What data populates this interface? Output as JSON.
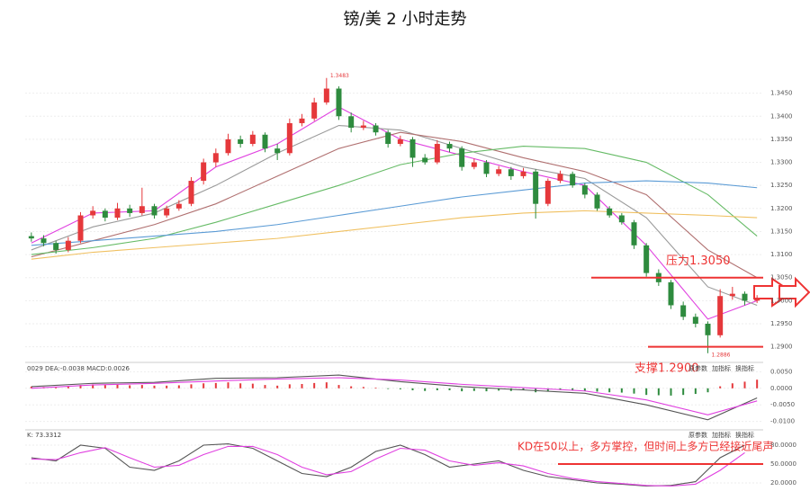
{
  "chart_data": [
    {
      "type": "candlestick",
      "title": "镑/美 2 小时走势",
      "candles": [
        [
          1.314,
          1.3148,
          1.3128,
          1.3135
        ],
        [
          1.3135,
          1.3142,
          1.3118,
          1.3125
        ],
        [
          1.3125,
          1.313,
          1.3102,
          1.311
        ],
        [
          1.311,
          1.3138,
          1.3105,
          1.313
        ],
        [
          1.313,
          1.3192,
          1.3125,
          1.3185
        ],
        [
          1.3185,
          1.3205,
          1.3178,
          1.3195
        ],
        [
          1.3195,
          1.32,
          1.3172,
          1.318
        ],
        [
          1.318,
          1.3212,
          1.3175,
          1.32
        ],
        [
          1.32,
          1.3208,
          1.3182,
          1.319
        ],
        [
          1.319,
          1.3245,
          1.3185,
          1.3205
        ],
        [
          1.3205,
          1.321,
          1.3178,
          1.3185
        ],
        [
          1.3185,
          1.3206,
          1.318,
          1.32
        ],
        [
          1.32,
          1.3218,
          1.3195,
          1.321
        ],
        [
          1.321,
          1.3268,
          1.3205,
          1.326
        ],
        [
          1.326,
          1.3308,
          1.3252,
          1.33
        ],
        [
          1.33,
          1.333,
          1.329,
          1.332
        ],
        [
          1.332,
          1.3362,
          1.3315,
          1.335
        ],
        [
          1.335,
          1.3358,
          1.3332,
          1.334
        ],
        [
          1.334,
          1.3368,
          1.3335,
          1.336
        ],
        [
          1.336,
          1.3365,
          1.3322,
          1.333
        ],
        [
          1.333,
          1.334,
          1.3305,
          1.332
        ],
        [
          1.332,
          1.3395,
          1.3315,
          1.3385
        ],
        [
          1.3385,
          1.3405,
          1.3378,
          1.3395
        ],
        [
          1.3395,
          1.344,
          1.339,
          1.343
        ],
        [
          1.343,
          1.3483,
          1.3425,
          1.346
        ],
        [
          1.346,
          1.3465,
          1.3392,
          1.34
        ],
        [
          1.34,
          1.3408,
          1.3365,
          1.3375
        ],
        [
          1.3375,
          1.339,
          1.337,
          1.338
        ],
        [
          1.338,
          1.3385,
          1.3358,
          1.3365
        ],
        [
          1.3365,
          1.337,
          1.3332,
          1.334
        ],
        [
          1.334,
          1.3358,
          1.3335,
          1.335
        ],
        [
          1.335,
          1.3355,
          1.329,
          1.331
        ],
        [
          1.331,
          1.3318,
          1.3295,
          1.33
        ],
        [
          1.33,
          1.3348,
          1.3296,
          1.334
        ],
        [
          1.334,
          1.3345,
          1.3322,
          1.333
        ],
        [
          1.333,
          1.3335,
          1.3282,
          1.329
        ],
        [
          1.329,
          1.3308,
          1.3285,
          1.33
        ],
        [
          1.33,
          1.3305,
          1.3268,
          1.3275
        ],
        [
          1.3275,
          1.3292,
          1.327,
          1.3285
        ],
        [
          1.3285,
          1.329,
          1.3262,
          1.327
        ],
        [
          1.327,
          1.3288,
          1.3265,
          1.328
        ],
        [
          1.328,
          1.3285,
          1.3178,
          1.321
        ],
        [
          1.321,
          1.3265,
          1.3205,
          1.326
        ],
        [
          1.326,
          1.3282,
          1.3255,
          1.3275
        ],
        [
          1.3275,
          1.328,
          1.3245,
          1.325
        ],
        [
          1.325,
          1.3255,
          1.3222,
          1.323
        ],
        [
          1.323,
          1.3235,
          1.3195,
          1.32
        ],
        [
          1.32,
          1.3205,
          1.318,
          1.3185
        ],
        [
          1.3185,
          1.319,
          1.3165,
          1.317
        ],
        [
          1.317,
          1.3175,
          1.3112,
          1.312
        ],
        [
          1.312,
          1.3125,
          1.3052,
          1.306
        ],
        [
          1.306,
          1.3068,
          1.3032,
          1.304
        ],
        [
          1.304,
          1.3045,
          1.2982,
          1.299
        ],
        [
          1.299,
          1.2998,
          1.2958,
          1.2965
        ],
        [
          1.2965,
          1.2972,
          1.2942,
          1.295
        ],
        [
          1.295,
          1.2955,
          1.2886,
          1.2925
        ],
        [
          1.2925,
          1.3025,
          1.292,
          1.301
        ],
        [
          1.301,
          1.303,
          1.3002,
          1.3015
        ],
        [
          1.3015,
          1.302,
          1.299,
          1.3
        ],
        [
          1.3,
          1.3012,
          1.2995,
          1.3005
        ]
      ],
      "color_up": "#e5383b",
      "color_down": "#2e8b3e",
      "ma_x": [
        0,
        5,
        10,
        15,
        20,
        25,
        30,
        35,
        40,
        45,
        50,
        55,
        59
      ],
      "ma": [
        {
          "color": "#e040e0",
          "values": [
            1.3125,
            1.319,
            1.3195,
            1.329,
            1.334,
            1.342,
            1.335,
            1.3315,
            1.328,
            1.325,
            1.312,
            1.296,
            1.3
          ]
        },
        {
          "color": "#9a9a9a",
          "values": [
            1.311,
            1.316,
            1.319,
            1.325,
            1.332,
            1.338,
            1.337,
            1.333,
            1.329,
            1.3265,
            1.318,
            1.303,
            1.299
          ]
        },
        {
          "color": "#b07070",
          "values": [
            1.3095,
            1.313,
            1.3165,
            1.321,
            1.327,
            1.333,
            1.3365,
            1.3345,
            1.331,
            1.328,
            1.323,
            1.311,
            1.305
          ]
        },
        {
          "color": "#66bb66",
          "values": [
            1.31,
            1.3115,
            1.3135,
            1.317,
            1.321,
            1.325,
            1.3295,
            1.332,
            1.3335,
            1.333,
            1.33,
            1.323,
            1.314
          ]
        },
        {
          "color": "#5b9bd5",
          "values": [
            1.312,
            1.313,
            1.314,
            1.315,
            1.3165,
            1.3185,
            1.3205,
            1.3225,
            1.324,
            1.3255,
            1.326,
            1.3255,
            1.3245
          ]
        },
        {
          "color": "#f0c060",
          "values": [
            1.309,
            1.3105,
            1.3115,
            1.3125,
            1.3135,
            1.315,
            1.3165,
            1.318,
            1.319,
            1.3195,
            1.319,
            1.3185,
            1.318
          ]
        }
      ],
      "ylim": [
        1.287,
        1.35
      ],
      "yticks": [
        {
          "value": 1.29,
          "label": "1.2900"
        },
        {
          "value": 1.295,
          "label": "1.2950"
        },
        {
          "value": 1.3,
          "label": "1.3000"
        },
        {
          "value": 1.305,
          "label": "1.3050"
        },
        {
          "value": 1.31,
          "label": "1.3100"
        },
        {
          "value": 1.315,
          "label": "1.3150"
        },
        {
          "value": 1.32,
          "label": "1.3200"
        },
        {
          "value": 1.325,
          "label": "1.3250"
        },
        {
          "value": 1.33,
          "label": "1.3300"
        },
        {
          "value": 1.335,
          "label": "1.3350"
        },
        {
          "value": 1.34,
          "label": "1.3400"
        },
        {
          "value": 1.345,
          "label": "1.3450"
        }
      ],
      "annotations": [
        {
          "text": "1.3483"
        },
        {
          "text": "1.2886"
        }
      ],
      "levels": [
        {
          "label": "压力1.3050",
          "value": 1.305
        },
        {
          "label": "支撑1.2900",
          "value": 1.29
        }
      ]
    },
    {
      "type": "macd",
      "header": "0029  DEA:-0.0038  MACD:0.0026",
      "buttons": [
        "原参数",
        "加指标",
        "换指标"
      ],
      "hist": [
        0.0005,
        0.0004,
        0.0003,
        0.0005,
        0.001,
        0.0012,
        0.001,
        0.0011,
        0.0009,
        0.001,
        0.0008,
        0.0008,
        0.0009,
        0.0012,
        0.0015,
        0.0016,
        0.0018,
        0.0015,
        0.0014,
        0.001,
        0.0008,
        0.0012,
        0.0013,
        0.0016,
        0.0018,
        0.001,
        0.0006,
        0.0004,
        0.0002,
        -0.0002,
        -0.0003,
        -0.0006,
        -0.0008,
        -0.0006,
        -0.0006,
        -0.0009,
        -0.0008,
        -0.0009,
        -0.0007,
        -0.0008,
        -0.0006,
        -0.0012,
        -0.0008,
        -0.0005,
        -0.0006,
        -0.0008,
        -0.001,
        -0.0012,
        -0.0013,
        -0.0016,
        -0.002,
        -0.0021,
        -0.0022,
        -0.002,
        -0.0017,
        -0.0012,
        0.0006,
        0.0015,
        0.002,
        0.0026
      ],
      "x": [
        0,
        5,
        10,
        15,
        20,
        25,
        30,
        35,
        40,
        45,
        50,
        55,
        59
      ],
      "dif": [
        0.0005,
        0.0015,
        0.0018,
        0.003,
        0.0032,
        0.004,
        0.002,
        0.0005,
        -0.0005,
        -0.0015,
        -0.005,
        -0.0095,
        -0.0029
      ],
      "dea": [
        0.0,
        0.001,
        0.0015,
        0.0022,
        0.0028,
        0.0032,
        0.0025,
        0.0012,
        0.0002,
        -0.0008,
        -0.0035,
        -0.008,
        -0.0038
      ],
      "ylim": [
        -0.012,
        0.007
      ],
      "yticks": [
        {
          "value": 0.005,
          "label": "0.0050"
        },
        {
          "value": 0,
          "label": "0.0000"
        },
        {
          "value": -0.005,
          "label": "-0.0050"
        },
        {
          "value": -0.01,
          "label": "-0.0100"
        }
      ]
    },
    {
      "type": "kd",
      "header": "K: 73.3312",
      "buttons": [
        "原参数",
        "加指标",
        "换指标"
      ],
      "x": [
        0,
        2,
        4,
        6,
        8,
        10,
        12,
        14,
        16,
        18,
        20,
        22,
        24,
        26,
        28,
        30,
        32,
        34,
        36,
        38,
        40,
        42,
        44,
        46,
        48,
        50,
        52,
        54,
        56,
        58
      ],
      "k": [
        60,
        55,
        80,
        75,
        45,
        40,
        55,
        80,
        82,
        75,
        55,
        35,
        30,
        45,
        70,
        80,
        65,
        45,
        50,
        55,
        40,
        30,
        25,
        20,
        18,
        15,
        16,
        22,
        60,
        80
      ],
      "d": [
        58,
        57,
        68,
        76,
        60,
        45,
        48,
        65,
        78,
        78,
        65,
        45,
        33,
        38,
        58,
        75,
        72,
        55,
        48,
        52,
        47,
        35,
        27,
        22,
        19,
        16,
        15,
        18,
        40,
        68
      ],
      "ylim": [
        0,
        100
      ],
      "yticks": [
        {
          "value": 80,
          "label": "80.0000"
        },
        {
          "value": 50,
          "label": "50.0000"
        },
        {
          "value": 20,
          "label": "20.0000"
        }
      ],
      "note": "KD在50以上，多方掌控，但时间上多方已经接近尾声",
      "level": 50
    }
  ]
}
